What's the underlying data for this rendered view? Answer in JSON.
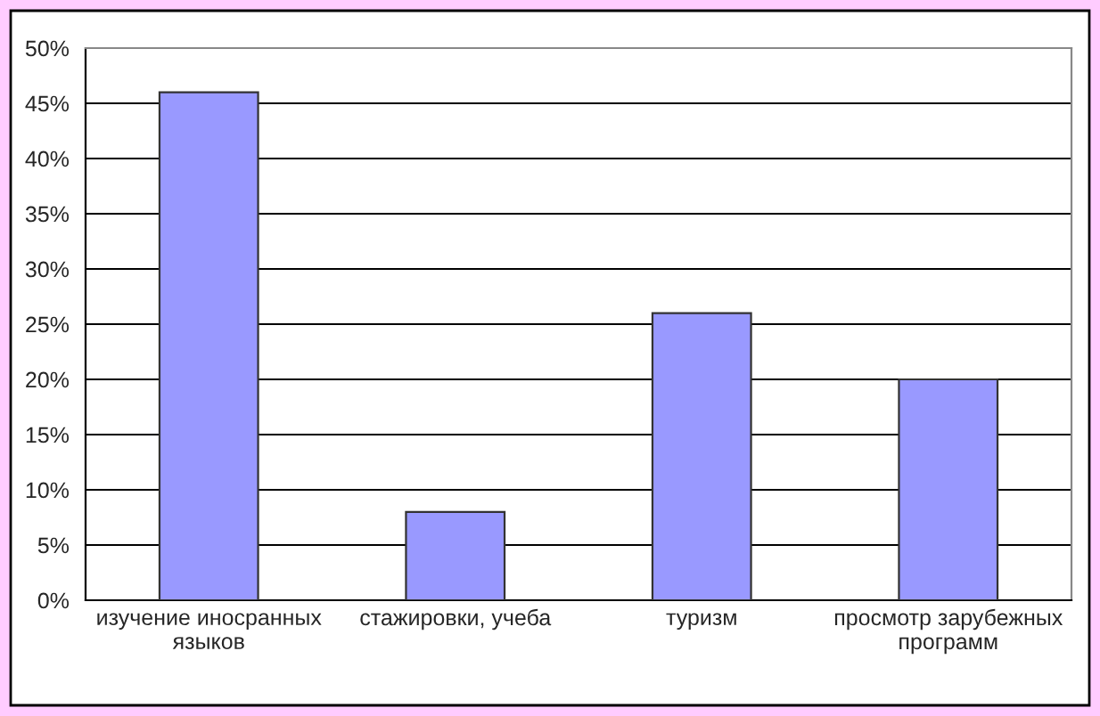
{
  "chart_data": {
    "type": "bar",
    "categories": [
      "изучение иносранных\nязыков",
      "стажировки, учеба",
      "туризм",
      "просмотр зарубежных\nпрограмм"
    ],
    "values": [
      46,
      8,
      26,
      20
    ],
    "color": "#9999ff",
    "ylim": [
      0,
      50
    ],
    "yticks": [
      {
        "value": 0,
        "label": "0%"
      },
      {
        "value": 5,
        "label": "5%"
      },
      {
        "value": 10,
        "label": "10%"
      },
      {
        "value": 15,
        "label": "15%"
      },
      {
        "value": 20,
        "label": "20%"
      },
      {
        "value": 25,
        "label": "25%"
      },
      {
        "value": 30,
        "label": "30%"
      },
      {
        "value": 35,
        "label": "35%"
      },
      {
        "value": 40,
        "label": "40%"
      },
      {
        "value": 45,
        "label": "45%"
      },
      {
        "value": 50,
        "label": "50%"
      }
    ],
    "grid": "y",
    "legend": false
  }
}
